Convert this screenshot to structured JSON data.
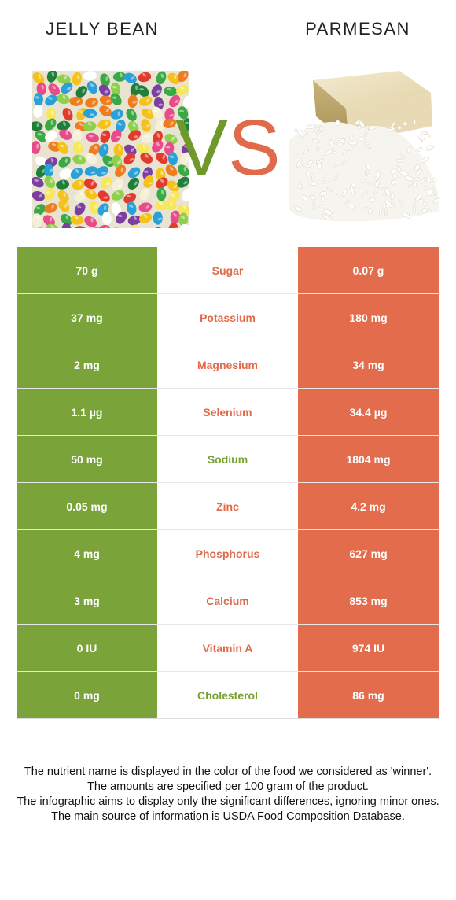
{
  "header": {
    "left_food": "JELLY BEAN",
    "right_food": "PARMESAN"
  },
  "vs": {
    "v": "V",
    "s": "S"
  },
  "colors": {
    "left_food": "#7aa33a",
    "right_food": "#e26c4b"
  },
  "rows": [
    {
      "nutrient": "Sugar",
      "left": "70 g",
      "right": "0.07 g",
      "winner": "right"
    },
    {
      "nutrient": "Potassium",
      "left": "37 mg",
      "right": "180 mg",
      "winner": "right"
    },
    {
      "nutrient": "Magnesium",
      "left": "2 mg",
      "right": "34 mg",
      "winner": "right"
    },
    {
      "nutrient": "Selenium",
      "left": "1.1 µg",
      "right": "34.4 µg",
      "winner": "right"
    },
    {
      "nutrient": "Sodium",
      "left": "50 mg",
      "right": "1804 mg",
      "winner": "left"
    },
    {
      "nutrient": "Zinc",
      "left": "0.05 mg",
      "right": "4.2 mg",
      "winner": "right"
    },
    {
      "nutrient": "Phosphorus",
      "left": "4 mg",
      "right": "627 mg",
      "winner": "right"
    },
    {
      "nutrient": "Calcium",
      "left": "3 mg",
      "right": "853 mg",
      "winner": "right"
    },
    {
      "nutrient": "Vitamin A",
      "left": "0 IU",
      "right": "974 IU",
      "winner": "right"
    },
    {
      "nutrient": "Cholesterol",
      "left": "0 mg",
      "right": "86 mg",
      "winner": "left"
    }
  ],
  "footer": {
    "line1": "The nutrient name is displayed in the color of the food we considered as 'winner'.",
    "line2": "The amounts are specified per 100 gram of the product.",
    "line3": "The infographic aims to display only the significant differences, ignoring minor ones.",
    "line4": "The main source of information is USDA Food Composition Database."
  }
}
